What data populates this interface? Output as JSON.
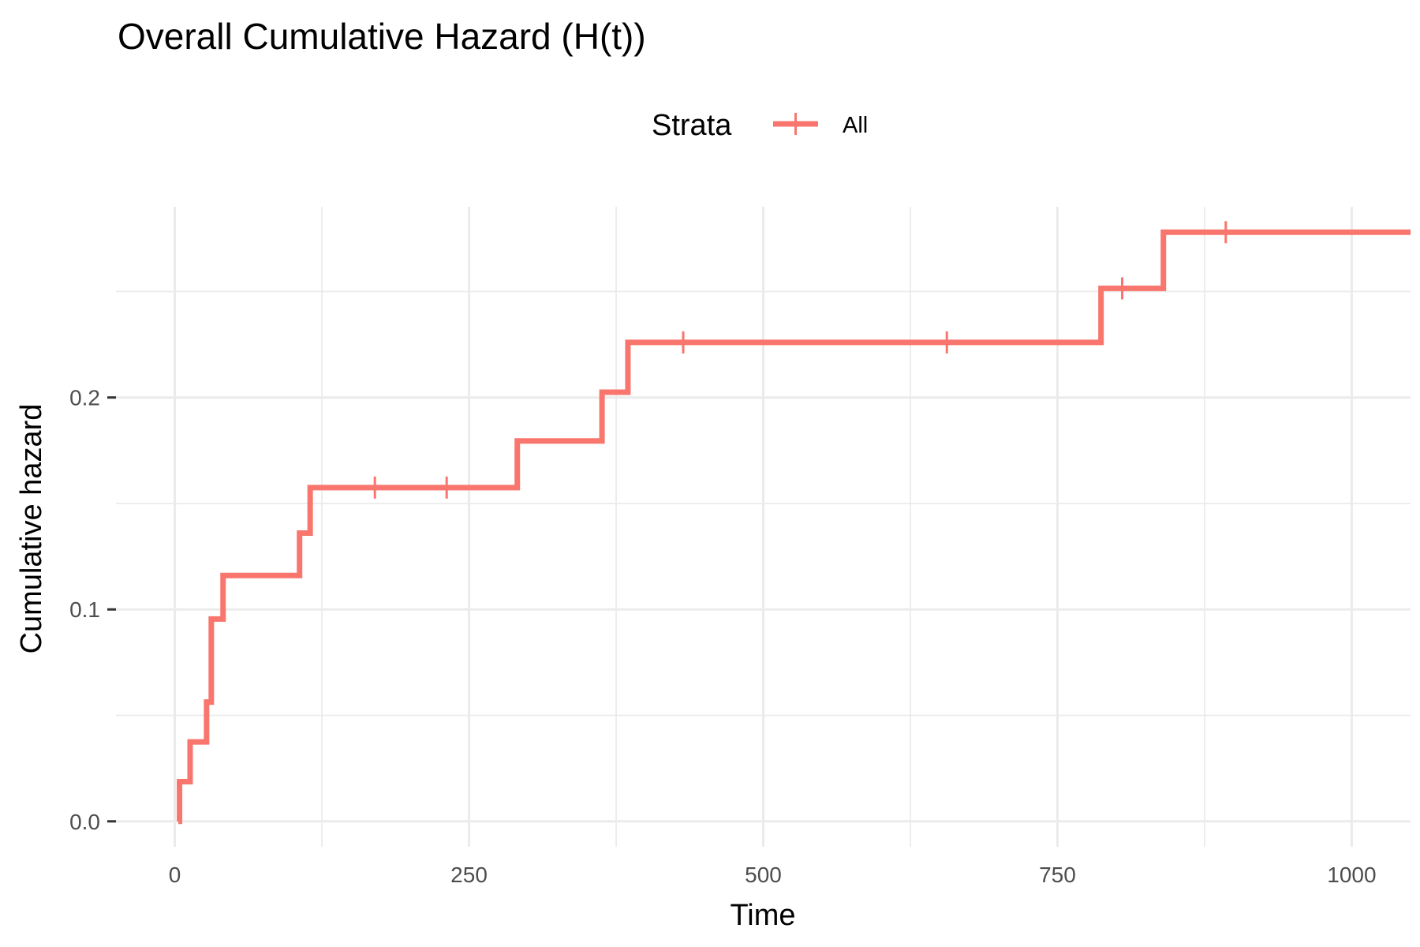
{
  "chart_data": {
    "type": "line",
    "title": "Overall Cumulative Hazard (H(t))",
    "xlabel": "Time",
    "ylabel": "Cumulative hazard",
    "xlim": [
      -50,
      1050
    ],
    "ylim": [
      -0.012,
      0.29
    ],
    "x_ticks": [
      0,
      250,
      500,
      750,
      1000
    ],
    "x_tick_labels": [
      "0",
      "250",
      "500",
      "750",
      "1000"
    ],
    "y_ticks": [
      0.0,
      0.1,
      0.2
    ],
    "y_tick_labels": [
      "0.0",
      "0.1",
      "0.2"
    ],
    "grid": true,
    "legend": {
      "title": "Strata",
      "placement": "top"
    },
    "series": [
      {
        "name": "All",
        "color": "#F8766D",
        "step": [
          {
            "x": 3,
            "y": 0.0
          },
          {
            "x": 4,
            "y": 0.0187
          },
          {
            "x": 13,
            "y": 0.0375
          },
          {
            "x": 27,
            "y": 0.0563
          },
          {
            "x": 31,
            "y": 0.0955
          },
          {
            "x": 41,
            "y": 0.116
          },
          {
            "x": 106,
            "y": 0.136
          },
          {
            "x": 115,
            "y": 0.1575
          },
          {
            "x": 291,
            "y": 0.1795
          },
          {
            "x": 363,
            "y": 0.2025
          },
          {
            "x": 385,
            "y": 0.226
          },
          {
            "x": 787,
            "y": 0.2515
          },
          {
            "x": 840,
            "y": 0.278
          },
          {
            "x": 1050,
            "y": 0.278
          }
        ],
        "censor_times": [
          170,
          231,
          432,
          656,
          805,
          893
        ]
      }
    ]
  }
}
